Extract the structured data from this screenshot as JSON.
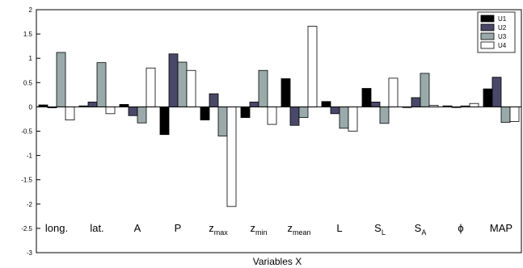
{
  "chart_data": {
    "type": "bar",
    "xlabel": "Variables X",
    "ylabel": "",
    "ylim": [
      -3,
      2
    ],
    "yticks": [
      2,
      1.5,
      1,
      0.5,
      0,
      -0.5,
      -1,
      -1.5,
      -2,
      -2.5,
      -3
    ],
    "ytick_labels": [
      "2",
      "1.5",
      "1",
      "0.5",
      "0",
      "-0.5",
      "-1",
      "-1.5",
      "-2",
      "-2.5",
      "-3"
    ],
    "grid": false,
    "legend_position": "top-right",
    "categories": [
      {
        "main": "long.",
        "sub": ""
      },
      {
        "main": "lat.",
        "sub": ""
      },
      {
        "main": "A",
        "sub": ""
      },
      {
        "main": "P",
        "sub": ""
      },
      {
        "main": "z",
        "sub": "max"
      },
      {
        "main": "z",
        "sub": "min"
      },
      {
        "main": "z",
        "sub": "mean"
      },
      {
        "main": "L",
        "sub": ""
      },
      {
        "main": "S",
        "sub": "L"
      },
      {
        "main": "S",
        "sub": "A"
      },
      {
        "main": "ϕ",
        "sub": ""
      },
      {
        "main": "MAP",
        "sub": ""
      }
    ],
    "series": [
      {
        "name": "U1",
        "color": "#000000",
        "values": [
          0.04,
          0.02,
          0.05,
          -0.57,
          -0.27,
          -0.22,
          0.58,
          0.11,
          0.38,
          0.0,
          0.02,
          0.37
        ]
      },
      {
        "name": "U2",
        "color": "#4a4868",
        "values": [
          -0.02,
          0.1,
          -0.18,
          1.09,
          0.27,
          0.1,
          -0.38,
          -0.14,
          0.1,
          0.19,
          0.0,
          0.61
        ]
      },
      {
        "name": "U3",
        "color": "#9aaaaa",
        "values": [
          1.12,
          0.91,
          -0.33,
          0.92,
          -0.6,
          0.75,
          -0.22,
          -0.44,
          -0.34,
          0.69,
          0.02,
          -0.32
        ]
      },
      {
        "name": "U4",
        "color": "#ffffff",
        "values": [
          -0.27,
          -0.14,
          0.8,
          0.75,
          -2.05,
          -0.36,
          1.66,
          -0.5,
          0.59,
          0.03,
          0.07,
          -0.3
        ]
      }
    ]
  }
}
